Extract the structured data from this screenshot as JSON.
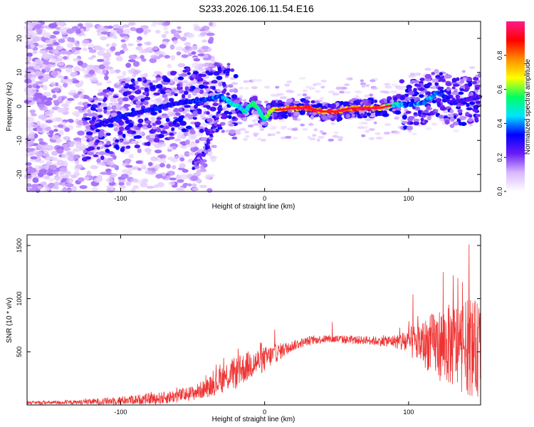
{
  "title": "S233.2026.106.11.54.E16",
  "chart_data": [
    {
      "type": "heatmap",
      "title": "S233.2026.106.11.54.E16",
      "xlabel": "Height of straight line (km)",
      "ylabel": "Frequency (Hz)",
      "xlim": [
        -165,
        150
      ],
      "ylim": [
        -25,
        25
      ],
      "xticks": [
        -100,
        0,
        100
      ],
      "yticks": [
        -20,
        -10,
        0,
        10,
        20
      ],
      "colorbar": {
        "label": "Normalized spectral amplitude",
        "range": [
          0,
          1
        ],
        "ticks": [
          "0.0",
          "0.2",
          "0.4",
          "0.6",
          "0.8"
        ],
        "tick_values": [
          0.0,
          0.2,
          0.4,
          0.6,
          0.8
        ],
        "colors": [
          "#ffffff",
          "#d9b8ff",
          "#6a1cf5",
          "#0000ff",
          "#00e5ff",
          "#00ff60",
          "#ffff00",
          "#ff8c00",
          "#ff0000",
          "#ff1a8c"
        ]
      },
      "ridge": {
        "x": [
          -118,
          -100,
          -80,
          -60,
          -40,
          -30,
          -24,
          -18,
          -14,
          -8,
          -4,
          0,
          5,
          10,
          20,
          30,
          40,
          50,
          60,
          70,
          80,
          90,
          100,
          110,
          115,
          120,
          125,
          130,
          140,
          150
        ],
        "y": [
          -6,
          -3,
          -1,
          1,
          2,
          3,
          1,
          0,
          -1.5,
          1,
          -1,
          -4,
          -1,
          -1,
          -0.5,
          -0.5,
          -1.5,
          -1.5,
          -0.5,
          -0.5,
          -0.5,
          0.5,
          0.5,
          1,
          2.5,
          4,
          3,
          1,
          2,
          3
        ],
        "amplitude": [
          0.3,
          0.35,
          0.35,
          0.35,
          0.4,
          0.4,
          0.5,
          0.55,
          0.55,
          0.6,
          0.6,
          0.55,
          0.7,
          0.85,
          0.9,
          0.9,
          0.85,
          0.9,
          0.9,
          0.9,
          0.85,
          0.55,
          0.4,
          0.45,
          0.45,
          0.4,
          0.35,
          0.3,
          0.3,
          0.3
        ]
      },
      "branch": {
        "x": [
          -50,
          -45,
          -40,
          -36,
          -32,
          -28,
          -25
        ],
        "y": [
          -18,
          -15,
          -12,
          -7,
          -2,
          5,
          12
        ]
      }
    },
    {
      "type": "line",
      "xlabel": "Height of straight line (km)",
      "ylabel": "SNR (10 * v/v)",
      "xlim": [
        -165,
        150
      ],
      "ylim": [
        0,
        1600
      ],
      "xticks": [
        -100,
        0,
        100
      ],
      "yticks": [
        500,
        1000,
        1500
      ],
      "color": "#ee3333",
      "envelope": {
        "x": [
          -165,
          -130,
          -110,
          -90,
          -70,
          -50,
          -40,
          -30,
          -25,
          -20,
          -10,
          0,
          10,
          20,
          30,
          40,
          50,
          60,
          70,
          80,
          90,
          100,
          110,
          120,
          130,
          140,
          145,
          150
        ],
        "base": [
          20,
          25,
          35,
          50,
          65,
          110,
          160,
          240,
          280,
          300,
          380,
          430,
          500,
          560,
          600,
          620,
          620,
          610,
          610,
          600,
          600,
          590,
          580,
          570,
          560,
          540,
          530,
          520
        ],
        "noise": [
          15,
          20,
          35,
          45,
          60,
          70,
          90,
          130,
          150,
          150,
          140,
          120,
          80,
          50,
          40,
          40,
          40,
          40,
          40,
          45,
          60,
          140,
          220,
          330,
          400,
          440,
          460,
          440
        ]
      },
      "peaks": [
        {
          "x": 142,
          "y": 1510
        },
        {
          "x": 124,
          "y": 1250
        },
        {
          "x": 131,
          "y": 1220
        },
        {
          "x": 103,
          "y": 1040
        },
        {
          "x": 7,
          "y": 710
        },
        {
          "x": 47,
          "y": 780
        }
      ]
    }
  ]
}
